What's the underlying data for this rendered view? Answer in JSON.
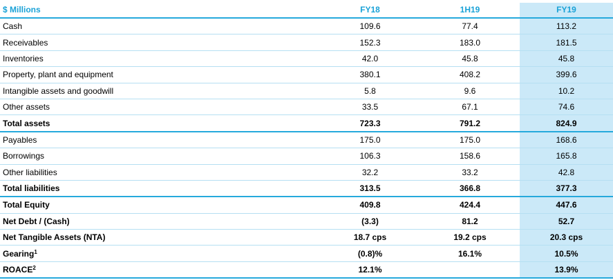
{
  "header": {
    "label": "$ Millions",
    "fy18": "FY18",
    "h119": "1H19",
    "fy19": "FY19"
  },
  "rows": [
    {
      "label": "Cash",
      "sup": "",
      "fy18": "109.6",
      "h119": "77.4",
      "fy19": "113.2"
    },
    {
      "label": "Receivables",
      "sup": "",
      "fy18": "152.3",
      "h119": "183.0",
      "fy19": "181.5"
    },
    {
      "label": "Inventories",
      "sup": "",
      "fy18": "42.0",
      "h119": "45.8",
      "fy19": "45.8"
    },
    {
      "label": "Property, plant and equipment",
      "sup": "",
      "fy18": "380.1",
      "h119": "408.2",
      "fy19": "399.6"
    },
    {
      "label": "Intangible assets and goodwill",
      "sup": "",
      "fy18": "5.8",
      "h119": "9.6",
      "fy19": "10.2"
    },
    {
      "label": "Other assets",
      "sup": "",
      "fy18": "33.5",
      "h119": "67.1",
      "fy19": "74.6"
    },
    {
      "label": "Total assets",
      "sup": "",
      "fy18": "723.3",
      "h119": "791.2",
      "fy19": "824.9"
    },
    {
      "label": "Payables",
      "sup": "",
      "fy18": "175.0",
      "h119": "175.0",
      "fy19": "168.6"
    },
    {
      "label": "Borrowings",
      "sup": "",
      "fy18": "106.3",
      "h119": "158.6",
      "fy19": "165.8"
    },
    {
      "label": "Other liabilities",
      "sup": "",
      "fy18": "32.2",
      "h119": "33.2",
      "fy19": "42.8"
    },
    {
      "label": "Total liabilities",
      "sup": "",
      "fy18": "313.5",
      "h119": "366.8",
      "fy19": "377.3"
    },
    {
      "label": "Total Equity",
      "sup": "",
      "fy18": "409.8",
      "h119": "424.4",
      "fy19": "447.6"
    },
    {
      "label": "Net Debt / (Cash)",
      "sup": "",
      "fy18": "(3.3)",
      "h119": "81.2",
      "fy19": "52.7"
    },
    {
      "label": "Net Tangible Assets (NTA)",
      "sup": "",
      "fy18": "18.7 cps",
      "h119": "19.2 cps",
      "fy19": "20.3 cps"
    },
    {
      "label": "Gearing",
      "sup": "1",
      "fy18": "(0.8)%",
      "h119": "16.1%",
      "fy19": "10.5%"
    },
    {
      "label": "ROACE",
      "sup": "2",
      "fy18": "12.1%",
      "h119": "",
      "fy19": "13.9%"
    }
  ]
}
